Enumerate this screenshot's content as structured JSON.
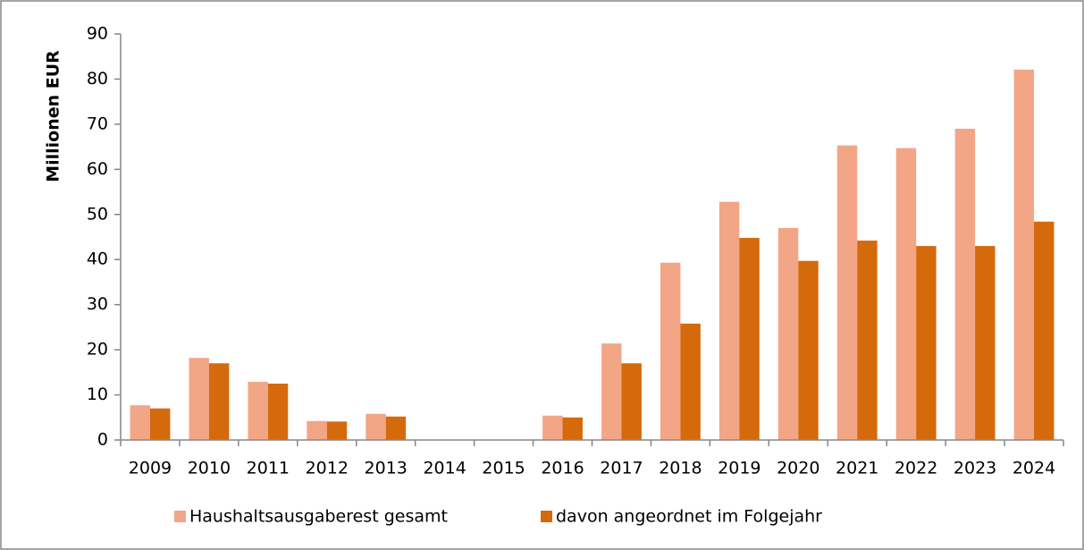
{
  "chart_data": {
    "type": "bar",
    "y_label": "Millionen EUR",
    "categories": [
      "2009",
      "2010",
      "2011",
      "2012",
      "2013",
      "2014",
      "2015",
      "2016",
      "2017",
      "2018",
      "2019",
      "2020",
      "2021",
      "2022",
      "2023",
      "2024"
    ],
    "series": [
      {
        "name": "Haushaltsausgaberest gesamt",
        "color": "#f2a686",
        "values": [
          7.7,
          18.2,
          12.9,
          4.2,
          5.8,
          0,
          0,
          5.4,
          21.4,
          39.3,
          52.8,
          47,
          65.3,
          64.7,
          69,
          82.1
        ]
      },
      {
        "name": "davon angeordnet im Folgejahr",
        "color": "#d46a0c",
        "values": [
          7,
          17,
          12.5,
          4.1,
          5.2,
          0,
          0,
          5,
          17,
          25.8,
          44.8,
          39.7,
          44.2,
          43,
          43,
          48.4
        ]
      }
    ],
    "ylim": [
      0,
      90
    ],
    "yticks": [
      0,
      10,
      20,
      30,
      40,
      50,
      60,
      70,
      80,
      90
    ],
    "legend": "bottom"
  }
}
